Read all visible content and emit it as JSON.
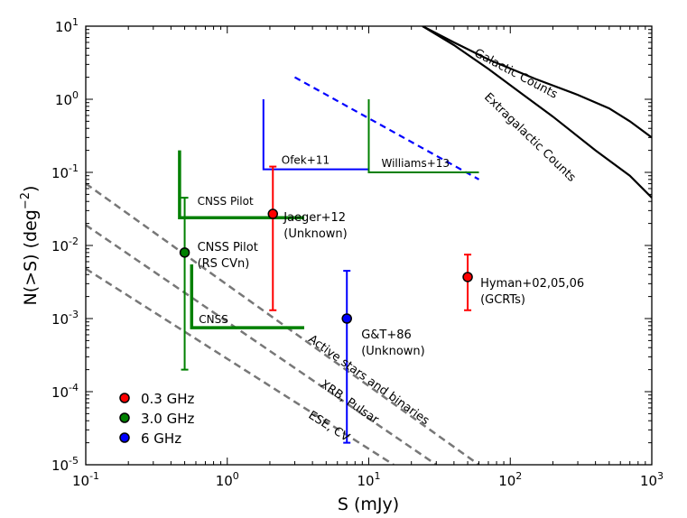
{
  "chart_data": {
    "type": "scatter",
    "xscale": "log",
    "yscale": "log",
    "xlim": [
      0.1,
      1000
    ],
    "ylim": [
      1e-05,
      10
    ],
    "xlabel": "S (mJy)",
    "ylabel_main": "N(>S) (deg",
    "ylabel_exp": "−2",
    "ylabel_close": ")",
    "grid": false,
    "legend_position": "bottom-left",
    "x_ticks": [
      {
        "value": 0.1,
        "base": "10",
        "exp": "-1"
      },
      {
        "value": 1,
        "base": "10",
        "exp": "0"
      },
      {
        "value": 10,
        "base": "10",
        "exp": "1"
      },
      {
        "value": 100,
        "base": "10",
        "exp": "2"
      },
      {
        "value": 1000,
        "base": "10",
        "exp": "3"
      }
    ],
    "y_ticks": [
      {
        "value": 1e-05,
        "base": "10",
        "exp": "-5"
      },
      {
        "value": 0.0001,
        "base": "10",
        "exp": "-4"
      },
      {
        "value": 0.001,
        "base": "10",
        "exp": "-3"
      },
      {
        "value": 0.01,
        "base": "10",
        "exp": "-2"
      },
      {
        "value": 0.1,
        "base": "10",
        "exp": "-1"
      },
      {
        "value": 1,
        "base": "10",
        "exp": "0"
      },
      {
        "value": 10,
        "base": "10",
        "exp": "1"
      }
    ],
    "legend": [
      {
        "label": "0.3 GHz",
        "color": "#ff0000"
      },
      {
        "label": "3.0 GHz",
        "color": "#008000"
      },
      {
        "label": "6 GHz",
        "color": "#0000ff"
      }
    ],
    "points": [
      {
        "x": 2.1,
        "y": 0.027,
        "ylow": 0.0013,
        "yhigh": 0.12,
        "color": "#ff0000",
        "label": [
          "Jaeger+12",
          "(Unknown)"
        ]
      },
      {
        "x": 50,
        "y": 0.0037,
        "ylow": 0.0013,
        "yhigh": 0.0075,
        "color": "#ff0000",
        "label": [
          "Hyman+02,05,06",
          "(GCRTs)"
        ]
      },
      {
        "x": 0.5,
        "y": 0.008,
        "ylow": 0.0002,
        "yhigh": 0.045,
        "color": "#008000",
        "label": [
          "CNSS Pilot",
          "(RS CVn)"
        ]
      },
      {
        "x": 7,
        "y": 0.001,
        "ylow": 2e-05,
        "yhigh": 0.0045,
        "color": "#0000ff",
        "label": [
          "G&T+86",
          "(Unknown)"
        ]
      }
    ],
    "limits": [
      {
        "label": "CNSS Pilot",
        "color": "#008000",
        "width": 3.5,
        "points": [
          [
            0.46,
            0.2
          ],
          [
            0.46,
            0.024
          ],
          [
            3.5,
            0.024
          ]
        ]
      },
      {
        "label": "CNSS",
        "color": "#008000",
        "width": 3.5,
        "points": [
          [
            0.56,
            0.0055
          ],
          [
            0.56,
            0.00075
          ],
          [
            3.5,
            0.00075
          ]
        ]
      },
      {
        "label": "Ofek+11",
        "color": "#0000ff",
        "width": 2,
        "points": [
          [
            1.8,
            1.0
          ],
          [
            1.8,
            0.11
          ],
          [
            10,
            0.11
          ]
        ]
      },
      {
        "label": "Williams+13",
        "color": "#008000",
        "width": 2,
        "points": [
          [
            10,
            1.0
          ],
          [
            10,
            0.1
          ],
          [
            60,
            0.1
          ]
        ]
      }
    ],
    "blue_dashed": [
      [
        3.0,
        2.0
      ],
      [
        60,
        0.08
      ]
    ],
    "reference_lines": [
      {
        "label": "Active stars and binaries",
        "points": [
          [
            0.1,
            0.07
          ],
          [
            60,
            1e-05
          ]
        ]
      },
      {
        "label": "XRB, Pulsar",
        "points": [
          [
            0.1,
            0.019
          ],
          [
            30,
            1e-05
          ]
        ]
      },
      {
        "label": "ESE, CV",
        "points": [
          [
            0.1,
            0.0048
          ],
          [
            15,
            1e-05
          ]
        ]
      }
    ],
    "curves": [
      {
        "label": "Galactic Counts",
        "points": [
          [
            24,
            10
          ],
          [
            40,
            6
          ],
          [
            70,
            3.5
          ],
          [
            150,
            1.9
          ],
          [
            300,
            1.15
          ],
          [
            500,
            0.75
          ],
          [
            700,
            0.5
          ],
          [
            1000,
            0.3
          ]
        ]
      },
      {
        "label": "Extragalactic Counts",
        "points": [
          [
            24,
            10
          ],
          [
            40,
            5.5
          ],
          [
            70,
            2.6
          ],
          [
            120,
            1.2
          ],
          [
            200,
            0.58
          ],
          [
            400,
            0.2
          ],
          [
            700,
            0.09
          ],
          [
            1000,
            0.045
          ]
        ]
      }
    ]
  }
}
